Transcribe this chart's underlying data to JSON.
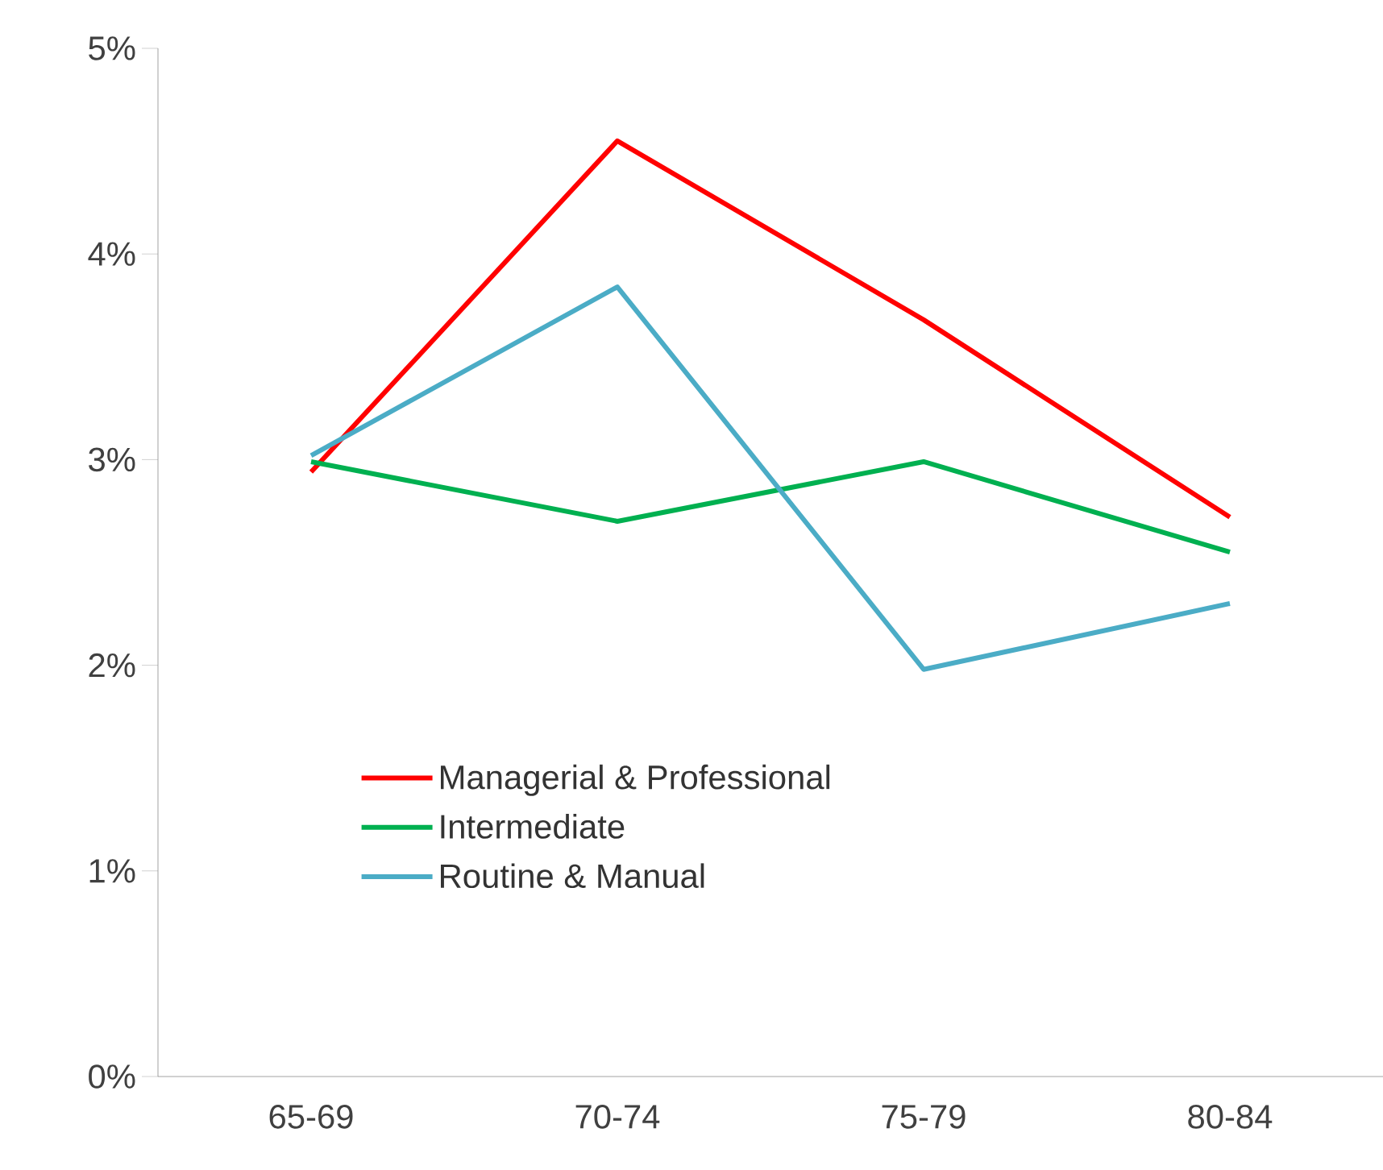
{
  "chart_data": {
    "type": "line",
    "categories": [
      "65-69",
      "70-74",
      "75-79",
      "80-84"
    ],
    "series": [
      {
        "name": "Managerial & Professional",
        "color": "#ff0000",
        "values": [
          2.94,
          4.55,
          3.68,
          2.72
        ]
      },
      {
        "name": "Intermediate",
        "color": "#00b050",
        "values": [
          2.99,
          2.7,
          2.99,
          2.55
        ]
      },
      {
        "name": "Routine & Manual",
        "color": "#4bacc6",
        "values": [
          3.02,
          3.84,
          1.98,
          2.3
        ]
      }
    ],
    "ylim": [
      0,
      5
    ],
    "yticks": [
      {
        "value": 0,
        "label": "0%"
      },
      {
        "value": 1,
        "label": "1%"
      },
      {
        "value": 2,
        "label": "2%"
      },
      {
        "value": 3,
        "label": "3%"
      },
      {
        "value": 4,
        "label": "4%"
      },
      {
        "value": 5,
        "label": "5%"
      }
    ],
    "grid": false,
    "legend": "bottom",
    "line_style": "solid",
    "marker": "none"
  }
}
